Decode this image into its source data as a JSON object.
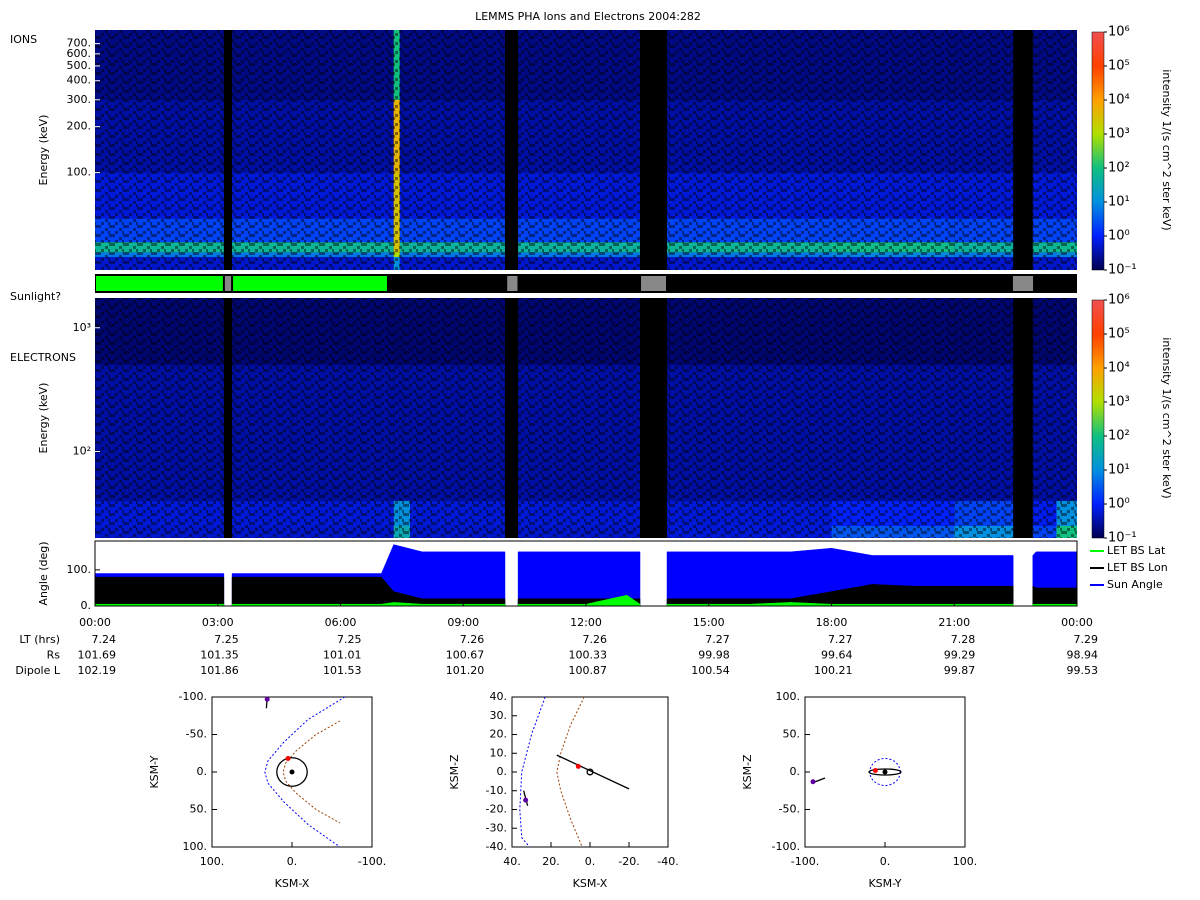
{
  "chart_data": [
    {
      "type": "heatmap",
      "title": "LEMMS PHA Ions and Electrons  2004:282",
      "label": "IONS",
      "ylabel": "Energy (keV)",
      "log_y": true,
      "ylim": [
        23,
        860
      ],
      "yticks": [
        {
          "value": 100,
          "label": "100."
        },
        {
          "value": 200,
          "label": "200."
        },
        {
          "value": 300,
          "label": "300."
        },
        {
          "value": 400,
          "label": "400."
        },
        {
          "value": 500,
          "label": "500."
        },
        {
          "value": 600,
          "label": "600."
        },
        {
          "value": 700,
          "label": "700."
        }
      ],
      "x_bins": [
        0,
        3.15,
        3.35,
        7.3,
        7.45,
        7.7,
        10.02,
        10.34,
        13.32,
        13.98,
        18,
        21,
        22.44,
        22.92,
        23.5,
        24
      ],
      "y_bins": [
        23,
        28,
        30,
        35,
        50,
        100,
        300,
        860
      ],
      "z": [
        [
          0.5,
          null,
          0.5,
          10,
          0.5,
          0.5,
          null,
          0.5,
          null,
          0.5,
          0.5,
          0.5,
          null,
          0.5,
          0.5
        ],
        [
          6,
          null,
          6,
          1000,
          6,
          6,
          null,
          6,
          null,
          6,
          8,
          6,
          null,
          6,
          8
        ],
        [
          60,
          null,
          60,
          3000,
          60,
          50,
          null,
          50,
          null,
          60,
          80,
          50,
          null,
          60,
          70
        ],
        [
          2,
          null,
          2,
          3000,
          2,
          2,
          null,
          2,
          null,
          2,
          2,
          2,
          null,
          2,
          2
        ],
        [
          0.6,
          null,
          0.6,
          3000,
          0.6,
          0.6,
          null,
          0.6,
          null,
          0.6,
          0.6,
          0.6,
          null,
          0.6,
          0.6
        ],
        [
          0.3,
          null,
          0.3,
          5000,
          0.3,
          0.3,
          null,
          0.3,
          null,
          0.3,
          0.3,
          0.3,
          null,
          0.3,
          0.3
        ],
        [
          0.2,
          null,
          0.2,
          100,
          0.2,
          0.2,
          null,
          0.2,
          null,
          0.2,
          0.2,
          0.2,
          null,
          0.2,
          0.2
        ]
      ],
      "zlim": [
        0.1,
        1000000
      ],
      "zticks": [
        {
          "value": 0.1,
          "label": "10⁻¹"
        },
        {
          "value": 1,
          "label": "10⁰"
        },
        {
          "value": 10,
          "label": "10¹"
        },
        {
          "value": 100,
          "label": "10²"
        },
        {
          "value": 1000,
          "label": "10³"
        },
        {
          "value": 10000,
          "label": "10⁴"
        },
        {
          "value": 100000,
          "label": "10⁵"
        },
        {
          "value": 1000000,
          "label": "10⁶"
        }
      ],
      "zlabel": "intensity 1/(s cm^2 ster keV)",
      "colorscale": [
        "#000050",
        "#0020ff",
        "#0090e0",
        "#10c080",
        "#b0e000",
        "#ffa000",
        "#ff4000",
        "#f05050"
      ]
    },
    {
      "type": "timeline",
      "label": "Sunlight?",
      "starts": [
        0,
        3.15,
        3.35,
        7.16,
        10.05,
        10.35,
        13.32,
        13.98,
        22.41,
        22.95
      ],
      "ends": [
        3.15,
        3.35,
        7.16,
        10.05,
        10.35,
        13.32,
        13.98,
        22.41,
        22.95,
        24
      ],
      "colors": [
        "#00ff00",
        "#888888",
        "#00ff00",
        "#000000",
        "#888888",
        "#000000",
        "#888888",
        "#000000",
        "#888888",
        "#000000"
      ]
    },
    {
      "type": "heatmap",
      "label": "ELECTRONS",
      "ylabel": "Energy (keV)",
      "log_y": true,
      "ylim": [
        20,
        1740
      ],
      "yticks": [
        {
          "value": 100,
          "label": "10²"
        },
        {
          "value": 1000,
          "label": "10³"
        }
      ],
      "x_bins": [
        0,
        3.15,
        3.35,
        7.3,
        7.45,
        7.7,
        10.02,
        10.34,
        13.32,
        13.98,
        18,
        21,
        22.44,
        22.92,
        23.5,
        24
      ],
      "y_bins": [
        20,
        25,
        40,
        500,
        1740
      ],
      "z": [
        [
          0.5,
          null,
          0.5,
          30,
          30,
          0.5,
          null,
          0.5,
          null,
          0.6,
          3,
          10,
          null,
          2,
          100
        ],
        [
          0.6,
          null,
          0.6,
          10,
          10,
          0.6,
          null,
          0.6,
          null,
          0.6,
          1,
          2,
          null,
          0.8,
          10
        ],
        [
          0.3,
          null,
          0.3,
          0.3,
          0.3,
          0.3,
          null,
          0.3,
          null,
          0.3,
          0.3,
          0.3,
          null,
          0.3,
          0.3
        ],
        [
          0.15,
          null,
          0.15,
          0.15,
          0.15,
          0.15,
          null,
          0.15,
          null,
          0.15,
          0.15,
          0.15,
          null,
          0.15,
          0.15
        ]
      ],
      "zlim": [
        0.1,
        1000000
      ],
      "zticks": [
        {
          "value": 0.1,
          "label": "10⁻¹"
        },
        {
          "value": 1,
          "label": "10⁰"
        },
        {
          "value": 10,
          "label": "10¹"
        },
        {
          "value": 100,
          "label": "10²"
        },
        {
          "value": 1000,
          "label": "10³"
        },
        {
          "value": 10000,
          "label": "10⁴"
        },
        {
          "value": 100000,
          "label": "10⁵"
        },
        {
          "value": 1000000,
          "label": "10⁶"
        }
      ],
      "zlabel": "intensity 1/(s cm^2 ster keV)",
      "colorscale": [
        "#000050",
        "#0020ff",
        "#0090e0",
        "#10c080",
        "#b0e000",
        "#ffa000",
        "#ff4000",
        "#f05050"
      ]
    },
    {
      "type": "area",
      "ylabel": "Angle (deg)",
      "xlim": [
        0,
        24
      ],
      "xticks": [
        {
          "value": 0,
          "label": "00:00"
        },
        {
          "value": 3,
          "label": "03:00"
        },
        {
          "value": 6,
          "label": "06:00"
        },
        {
          "value": 9,
          "label": "09:00"
        },
        {
          "value": 12,
          "label": "12:00"
        },
        {
          "value": 15,
          "label": "15:00"
        },
        {
          "value": 18,
          "label": "18:00"
        },
        {
          "value": 21,
          "label": "21:00"
        },
        {
          "value": 24,
          "label": "00:00"
        }
      ],
      "ylim": [
        0,
        180
      ],
      "yticks": [
        {
          "value": 0,
          "label": "0."
        },
        {
          "value": 100,
          "label": "100."
        }
      ],
      "x": [
        0,
        1,
        2,
        3,
        3.15,
        3.25,
        3.35,
        4,
        5,
        6,
        7,
        7.3,
        8,
        9,
        10,
        10.02,
        10.18,
        10.34,
        11,
        12,
        13,
        13.32,
        13.65,
        13.98,
        15,
        16,
        17,
        18,
        19,
        20,
        21,
        22,
        22.44,
        22.68,
        22.92,
        23,
        24
      ],
      "series": [
        {
          "name": "Sun Angle",
          "color": "#0000ff",
          "values": [
            90,
            90,
            90,
            90,
            90,
            null,
            90,
            90,
            90,
            90,
            90,
            170,
            150,
            150,
            150,
            150,
            null,
            150,
            150,
            150,
            150,
            150,
            null,
            150,
            150,
            150,
            150,
            160,
            140,
            140,
            140,
            140,
            140,
            null,
            140,
            150,
            150
          ]
        },
        {
          "name": "LET BS Lon",
          "color": "#000000",
          "values": [
            80,
            80,
            80,
            80,
            80,
            null,
            80,
            80,
            80,
            80,
            80,
            40,
            20,
            20,
            20,
            20,
            null,
            20,
            20,
            20,
            20,
            20,
            null,
            20,
            20,
            20,
            20,
            40,
            60,
            55,
            55,
            55,
            55,
            null,
            55,
            50,
            50
          ]
        },
        {
          "name": "LET BS Lat",
          "color": "#00ff00",
          "values": [
            5,
            5,
            5,
            5,
            5,
            null,
            5,
            5,
            5,
            5,
            5,
            10,
            5,
            5,
            5,
            5,
            null,
            5,
            5,
            5,
            30,
            5,
            null,
            5,
            5,
            5,
            10,
            5,
            5,
            5,
            5,
            5,
            5,
            null,
            5,
            5,
            5
          ]
        }
      ],
      "legend_order": [
        2,
        1,
        0
      ]
    },
    {
      "type": "line",
      "xlabel": "KSM-X",
      "ylabel": "KSM-Y",
      "xlim": [
        100,
        -100
      ],
      "ylim": [
        100,
        -100
      ],
      "xticks": [
        {
          "value": 100,
          "label": "100."
        },
        {
          "value": 0,
          "label": "0."
        },
        {
          "value": -100,
          "label": "-100."
        }
      ],
      "yticks": [
        {
          "value": -100,
          "label": "-100."
        },
        {
          "value": -50,
          "label": "-50."
        },
        {
          "value": 0,
          "label": "0."
        },
        {
          "value": 50,
          "label": "50."
        },
        {
          "value": 100,
          "label": "100."
        }
      ],
      "series": [
        {
          "color": "#0000ff",
          "dashed": true,
          "x": [
            -66,
            -20,
            10,
            30,
            34,
            30,
            10,
            -20,
            -60
          ],
          "y": [
            -100,
            -70,
            -40,
            -15,
            0,
            15,
            40,
            70,
            100
          ]
        },
        {
          "color": "#a04000",
          "dashed": true,
          "x": [
            -60,
            -30,
            -5,
            8,
            11,
            8,
            -5,
            -30,
            -60
          ],
          "y": [
            -68,
            -50,
            -28,
            -12,
            0,
            12,
            28,
            50,
            68
          ]
        },
        {
          "color": "#000000",
          "dashed": false,
          "x": [
            31,
            32
          ],
          "y": [
            -100,
            -85
          ]
        }
      ],
      "ellipses": [
        {
          "cx": 0,
          "cy": 0,
          "rx": 19,
          "ry": 19,
          "color": "#000000",
          "dashed": false
        }
      ],
      "points": {
        "x": [
          31,
          5,
          0
        ],
        "y": [
          -97,
          -18,
          0
        ],
        "colors": [
          "#6000a0",
          "#ff0000",
          "#000000"
        ]
      }
    },
    {
      "type": "line",
      "xlabel": "KSM-X",
      "ylabel": "KSM-Z",
      "xlim": [
        40,
        -40
      ],
      "ylim": [
        -40,
        40
      ],
      "xticks": [
        {
          "value": 40,
          "label": "40."
        },
        {
          "value": 20,
          "label": "20."
        },
        {
          "value": 0,
          "label": "0."
        },
        {
          "value": -20,
          "label": "-20."
        },
        {
          "value": -40,
          "label": "-40."
        }
      ],
      "yticks": [
        {
          "value": 40,
          "label": "40."
        },
        {
          "value": 30,
          "label": "30."
        },
        {
          "value": 20,
          "label": "20."
        },
        {
          "value": 10,
          "label": "10."
        },
        {
          "value": 0,
          "label": "0."
        },
        {
          "value": -10,
          "label": "-10."
        },
        {
          "value": -20,
          "label": "-20."
        },
        {
          "value": -30,
          "label": "-30."
        },
        {
          "value": -40,
          "label": "-40."
        }
      ],
      "series": [
        {
          "color": "#0000ff",
          "dashed": true,
          "x": [
            23,
            30,
            35,
            36,
            35,
            31
          ],
          "y": [
            40,
            20,
            0,
            -20,
            -35,
            -40
          ]
        },
        {
          "color": "#a04000",
          "dashed": true,
          "x": [
            3,
            10,
            15,
            17,
            15,
            10,
            4
          ],
          "y": [
            40,
            25,
            10,
            0,
            -10,
            -25,
            -40
          ]
        },
        {
          "color": "#000000",
          "dashed": false,
          "x": [
            17,
            -20
          ],
          "y": [
            9,
            -9
          ]
        },
        {
          "color": "#000000",
          "dashed": false,
          "x": [
            34,
            32
          ],
          "y": [
            -10,
            -18
          ]
        }
      ],
      "ellipses": [
        {
          "cx": 0,
          "cy": 0,
          "rx": 1.5,
          "ry": 1.5,
          "color": "#000000",
          "dashed": false
        }
      ],
      "points": {
        "x": [
          33,
          6
        ],
        "y": [
          -15,
          3
        ],
        "colors": [
          "#6000a0",
          "#ff0000"
        ]
      }
    },
    {
      "type": "line",
      "xlabel": "KSM-Y",
      "ylabel": "KSM-Z",
      "xlim": [
        -100,
        100
      ],
      "ylim": [
        -100,
        100
      ],
      "xticks": [
        {
          "value": -100,
          "label": "-100."
        },
        {
          "value": 0,
          "label": "0."
        },
        {
          "value": 100,
          "label": "100."
        }
      ],
      "yticks": [
        {
          "value": 100,
          "label": "100."
        },
        {
          "value": 50,
          "label": "50."
        },
        {
          "value": 0,
          "label": "0."
        },
        {
          "value": -50,
          "label": "-50."
        },
        {
          "value": -100,
          "label": "-100."
        }
      ],
      "series": [
        {
          "color": "#000000",
          "dashed": false,
          "x": [
            -92,
            -75
          ],
          "y": [
            -15,
            -8
          ]
        }
      ],
      "ellipses": [
        {
          "cx": 0,
          "cy": 0,
          "rx": 19,
          "ry": 18,
          "color": "#0000ff",
          "dashed": true
        },
        {
          "cx": 0,
          "cy": 0,
          "rx": 20,
          "ry": 4,
          "color": "#000000",
          "dashed": false
        }
      ],
      "points": {
        "x": [
          -90,
          -12,
          0
        ],
        "y": [
          -13,
          2,
          0
        ],
        "colors": [
          "#6000a0",
          "#ff0000",
          "#000000"
        ]
      }
    }
  ],
  "ephemeris": {
    "rows": [
      {
        "label": "LT (hrs)",
        "values": [
          "7.24",
          "7.25",
          "7.25",
          "7.26",
          "7.26",
          "7.27",
          "7.27",
          "7.28",
          "7.29"
        ]
      },
      {
        "label": "Rs",
        "values": [
          "101.69",
          "101.35",
          "101.01",
          "100.67",
          "100.33",
          "99.98",
          "99.64",
          "99.29",
          "98.94"
        ]
      },
      {
        "label": "Dipole L",
        "values": [
          "102.19",
          "101.86",
          "101.53",
          "101.20",
          "100.87",
          "100.54",
          "100.21",
          "99.87",
          "99.53"
        ]
      }
    ]
  }
}
